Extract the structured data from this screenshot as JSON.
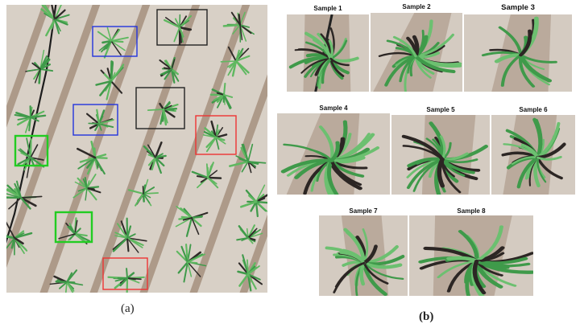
{
  "figure": {
    "caption_a": "(a)",
    "caption_b": "(b)",
    "samples": [
      {
        "label": "Sample 1"
      },
      {
        "label": "Sample 2"
      },
      {
        "label": "Sample 3"
      },
      {
        "label": "Sample 4"
      },
      {
        "label": "Sample 5"
      },
      {
        "label": "Sample 6"
      },
      {
        "label": "Sample 7"
      },
      {
        "label": "Sample 8"
      }
    ],
    "box_colors": {
      "black": "#222222",
      "blue": "#2233dd",
      "green": "#22cc22",
      "red": "#ee3333"
    },
    "scene": {
      "soil_color": "#d8d0c6",
      "furrow_color": "#8a6e58",
      "plant_color": "#3f9a4a"
    }
  }
}
